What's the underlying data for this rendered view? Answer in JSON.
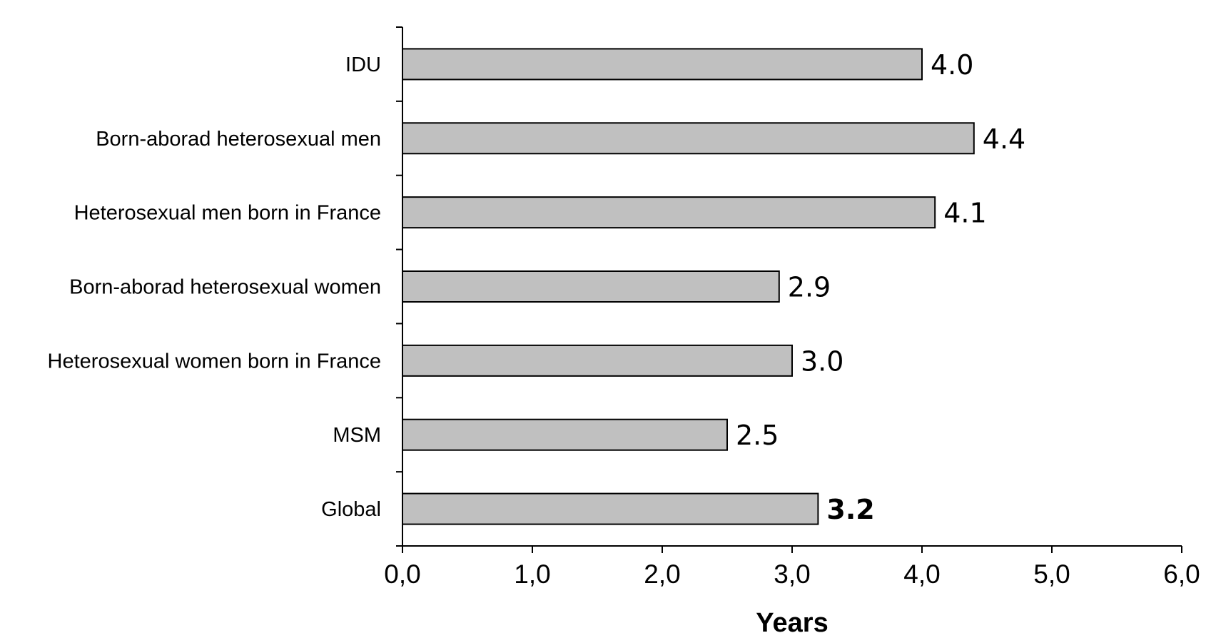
{
  "chart_data": {
    "type": "bar",
    "orientation": "horizontal",
    "categories": [
      "IDU",
      "Born-aborad heterosexual men",
      "Heterosexual men born in France",
      "Born-aborad heterosexual women",
      "Heterosexual women born in France",
      "MSM",
      "Global"
    ],
    "values": [
      4.0,
      4.4,
      4.1,
      2.9,
      3.0,
      2.5,
      3.2
    ],
    "data_labels": [
      "4.0",
      "4.4",
      "4.1",
      "2.9",
      "3.0",
      "2.5",
      "3.2"
    ],
    "bold_labels": [
      "3.2"
    ],
    "xlabel": "Years",
    "xlim": [
      0,
      6
    ],
    "x_ticks": [
      "0,0",
      "1,0",
      "2,0",
      "3,0",
      "4,0",
      "5,0",
      "6,0"
    ],
    "bar_color": "#c0c0c0",
    "grid": false,
    "legend": "none"
  }
}
